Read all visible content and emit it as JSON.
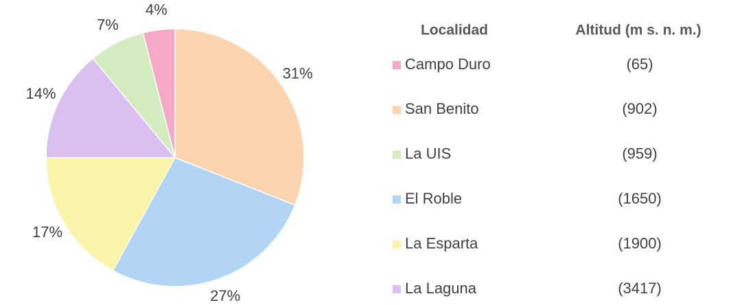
{
  "chart_data": {
    "type": "pie",
    "values": [
      31,
      27,
      17,
      14,
      7,
      4
    ],
    "value_labels": [
      "31%",
      "27%",
      "17%",
      "14%",
      "7%",
      "4%"
    ],
    "colors": [
      "#fcd5b0",
      "#b2d5f5",
      "#fbf5ab",
      "#d9c0f0",
      "#d4ecc0",
      "#f7a8c8"
    ]
  },
  "legend": {
    "headers": [
      "Localidad",
      "Altitud (m s. n. m.)"
    ],
    "rows": [
      {
        "name": "Campo Duro",
        "color": "#f7a8c8",
        "altitude": "(65)"
      },
      {
        "name": "San Benito",
        "color": "#fcd5b0",
        "altitude": "(902)"
      },
      {
        "name": "La UIS",
        "color": "#d4ecc0",
        "altitude": "(959)"
      },
      {
        "name": "El Roble",
        "color": "#b2d5f5",
        "altitude": "(1650)"
      },
      {
        "name": "La Esparta",
        "color": "#fbf5ab",
        "altitude": "(1900)"
      },
      {
        "name": "La Laguna",
        "color": "#d9c0f0",
        "altitude": "(3417)"
      }
    ]
  }
}
